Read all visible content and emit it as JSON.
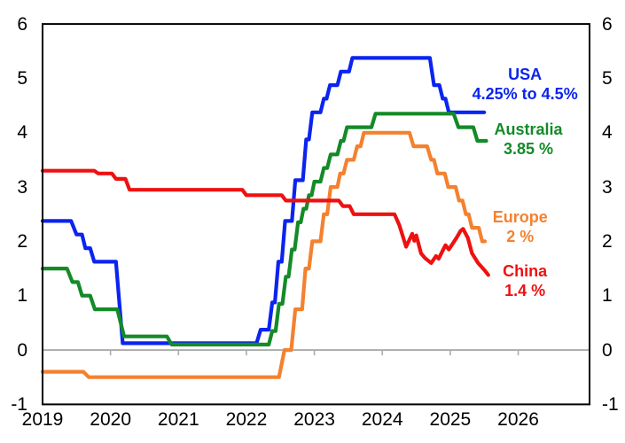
{
  "figure": {
    "background": "#ffffff",
    "plot_border_color": "#000000",
    "zero_line_color": "#ababab"
  },
  "chart_data": {
    "type": "line",
    "title": "",
    "xlabel": "",
    "ylabel": "",
    "legend_position": "end-of-line labels",
    "grid": "zero line only",
    "x_axis": {
      "range": [
        2019,
        2027.05
      ],
      "ticks": [
        2019,
        2020,
        2021,
        2022,
        2023,
        2024,
        2025,
        2026
      ],
      "tick_labels": [
        "2019",
        "2020",
        "2021",
        "2022",
        "2023",
        "2024",
        "2025",
        "2026"
      ]
    },
    "y_axis": {
      "range": [
        -1,
        6
      ],
      "ticks": [
        6,
        5,
        4,
        3,
        2,
        1,
        0,
        -1
      ],
      "tick_labels": [
        "6",
        "5",
        "4",
        "3",
        "2",
        "1",
        "0",
        "-1"
      ],
      "sides": "both"
    },
    "series": [
      {
        "name": "USA",
        "color": "#0b24f0",
        "end_label": [
          "USA",
          "4.25% to 4.5%"
        ],
        "label_anchor": {
          "x": 2026.1,
          "y": 4.9
        },
        "points": [
          [
            2019.0,
            2.375
          ],
          [
            2019.42,
            2.375
          ],
          [
            2019.5,
            2.125
          ],
          [
            2019.58,
            2.125
          ],
          [
            2019.63,
            1.875
          ],
          [
            2019.7,
            1.875
          ],
          [
            2019.76,
            1.625
          ],
          [
            2020.08,
            1.625
          ],
          [
            2020.18,
            0.125
          ],
          [
            2022.15,
            0.125
          ],
          [
            2022.21,
            0.375
          ],
          [
            2022.33,
            0.375
          ],
          [
            2022.38,
            0.875
          ],
          [
            2022.42,
            0.875
          ],
          [
            2022.47,
            1.625
          ],
          [
            2022.52,
            1.625
          ],
          [
            2022.57,
            2.375
          ],
          [
            2022.67,
            2.375
          ],
          [
            2022.72,
            3.125
          ],
          [
            2022.83,
            3.125
          ],
          [
            2022.88,
            3.875
          ],
          [
            2022.92,
            3.875
          ],
          [
            2022.97,
            4.375
          ],
          [
            2023.09,
            4.375
          ],
          [
            2023.14,
            4.625
          ],
          [
            2023.18,
            4.625
          ],
          [
            2023.23,
            4.875
          ],
          [
            2023.34,
            4.875
          ],
          [
            2023.39,
            5.125
          ],
          [
            2023.51,
            5.125
          ],
          [
            2023.56,
            5.375
          ],
          [
            2024.7,
            5.375
          ],
          [
            2024.76,
            4.875
          ],
          [
            2024.84,
            4.875
          ],
          [
            2024.89,
            4.625
          ],
          [
            2024.93,
            4.625
          ],
          [
            2024.98,
            4.375
          ],
          [
            2025.5,
            4.375
          ]
        ]
      },
      {
        "name": "Australia",
        "color": "#148a28",
        "end_label": [
          "Australia",
          "3.85 %"
        ],
        "label_anchor": {
          "x": 2026.15,
          "y": 3.88
        },
        "points": [
          [
            2019.0,
            1.5
          ],
          [
            2019.36,
            1.5
          ],
          [
            2019.44,
            1.25
          ],
          [
            2019.52,
            1.25
          ],
          [
            2019.58,
            1.0
          ],
          [
            2019.7,
            1.0
          ],
          [
            2019.77,
            0.75
          ],
          [
            2020.1,
            0.75
          ],
          [
            2020.2,
            0.25
          ],
          [
            2020.83,
            0.25
          ],
          [
            2020.9,
            0.1
          ],
          [
            2022.33,
            0.1
          ],
          [
            2022.38,
            0.35
          ],
          [
            2022.43,
            0.35
          ],
          [
            2022.48,
            0.85
          ],
          [
            2022.53,
            0.85
          ],
          [
            2022.58,
            1.35
          ],
          [
            2022.62,
            1.35
          ],
          [
            2022.67,
            1.85
          ],
          [
            2022.71,
            1.85
          ],
          [
            2022.76,
            2.35
          ],
          [
            2022.8,
            2.35
          ],
          [
            2022.84,
            2.6
          ],
          [
            2022.88,
            2.6
          ],
          [
            2022.92,
            2.85
          ],
          [
            2022.96,
            2.85
          ],
          [
            2023.0,
            3.1
          ],
          [
            2023.09,
            3.1
          ],
          [
            2023.14,
            3.35
          ],
          [
            2023.19,
            3.35
          ],
          [
            2023.24,
            3.6
          ],
          [
            2023.34,
            3.6
          ],
          [
            2023.39,
            3.85
          ],
          [
            2023.43,
            3.85
          ],
          [
            2023.48,
            4.1
          ],
          [
            2023.84,
            4.1
          ],
          [
            2023.9,
            4.35
          ],
          [
            2025.05,
            4.35
          ],
          [
            2025.12,
            4.1
          ],
          [
            2025.34,
            4.1
          ],
          [
            2025.4,
            3.85
          ],
          [
            2025.53,
            3.85
          ]
        ]
      },
      {
        "name": "Europe",
        "color": "#f4812f",
        "end_label": [
          "Europe",
          "2 %"
        ],
        "label_anchor": {
          "x": 2026.03,
          "y": 2.26
        },
        "points": [
          [
            2019.0,
            -0.4
          ],
          [
            2019.6,
            -0.4
          ],
          [
            2019.68,
            -0.5
          ],
          [
            2022.48,
            -0.5
          ],
          [
            2022.56,
            0.0
          ],
          [
            2022.66,
            0.0
          ],
          [
            2022.72,
            0.75
          ],
          [
            2022.82,
            0.75
          ],
          [
            2022.87,
            1.5
          ],
          [
            2022.92,
            1.5
          ],
          [
            2022.97,
            2.0
          ],
          [
            2023.09,
            2.0
          ],
          [
            2023.14,
            2.5
          ],
          [
            2023.19,
            2.5
          ],
          [
            2023.24,
            3.0
          ],
          [
            2023.34,
            3.0
          ],
          [
            2023.38,
            3.25
          ],
          [
            2023.43,
            3.25
          ],
          [
            2023.48,
            3.5
          ],
          [
            2023.58,
            3.5
          ],
          [
            2023.63,
            3.75
          ],
          [
            2023.68,
            3.75
          ],
          [
            2023.73,
            4.0
          ],
          [
            2024.4,
            4.0
          ],
          [
            2024.46,
            3.75
          ],
          [
            2024.66,
            3.75
          ],
          [
            2024.72,
            3.5
          ],
          [
            2024.76,
            3.5
          ],
          [
            2024.81,
            3.25
          ],
          [
            2024.92,
            3.25
          ],
          [
            2024.97,
            3.0
          ],
          [
            2025.08,
            3.0
          ],
          [
            2025.13,
            2.75
          ],
          [
            2025.18,
            2.75
          ],
          [
            2025.23,
            2.5
          ],
          [
            2025.27,
            2.5
          ],
          [
            2025.32,
            2.25
          ],
          [
            2025.42,
            2.25
          ],
          [
            2025.47,
            2.0
          ],
          [
            2025.51,
            2.0
          ]
        ]
      },
      {
        "name": "China",
        "color": "#ee1111",
        "end_label": [
          "China",
          "1.4 %"
        ],
        "label_anchor": {
          "x": 2026.1,
          "y": 1.27
        },
        "points": [
          [
            2019.0,
            3.3
          ],
          [
            2019.76,
            3.3
          ],
          [
            2019.82,
            3.25
          ],
          [
            2020.02,
            3.25
          ],
          [
            2020.08,
            3.15
          ],
          [
            2020.22,
            3.15
          ],
          [
            2020.28,
            2.95
          ],
          [
            2021.94,
            2.95
          ],
          [
            2022.0,
            2.85
          ],
          [
            2022.52,
            2.85
          ],
          [
            2022.58,
            2.75
          ],
          [
            2023.36,
            2.75
          ],
          [
            2023.42,
            2.65
          ],
          [
            2023.52,
            2.65
          ],
          [
            2023.58,
            2.5
          ],
          [
            2024.18,
            2.5
          ],
          [
            2024.25,
            2.3
          ],
          [
            2024.35,
            1.9
          ],
          [
            2024.44,
            2.14
          ],
          [
            2024.47,
            2.01
          ],
          [
            2024.5,
            2.11
          ],
          [
            2024.57,
            1.78
          ],
          [
            2024.63,
            1.69
          ],
          [
            2024.72,
            1.6
          ],
          [
            2024.79,
            1.73
          ],
          [
            2024.83,
            1.68
          ],
          [
            2024.93,
            1.93
          ],
          [
            2024.98,
            1.85
          ],
          [
            2025.09,
            2.06
          ],
          [
            2025.15,
            2.19
          ],
          [
            2025.19,
            2.23
          ],
          [
            2025.26,
            2.06
          ],
          [
            2025.32,
            1.78
          ],
          [
            2025.41,
            1.6
          ],
          [
            2025.51,
            1.46
          ],
          [
            2025.56,
            1.38
          ]
        ]
      }
    ]
  }
}
